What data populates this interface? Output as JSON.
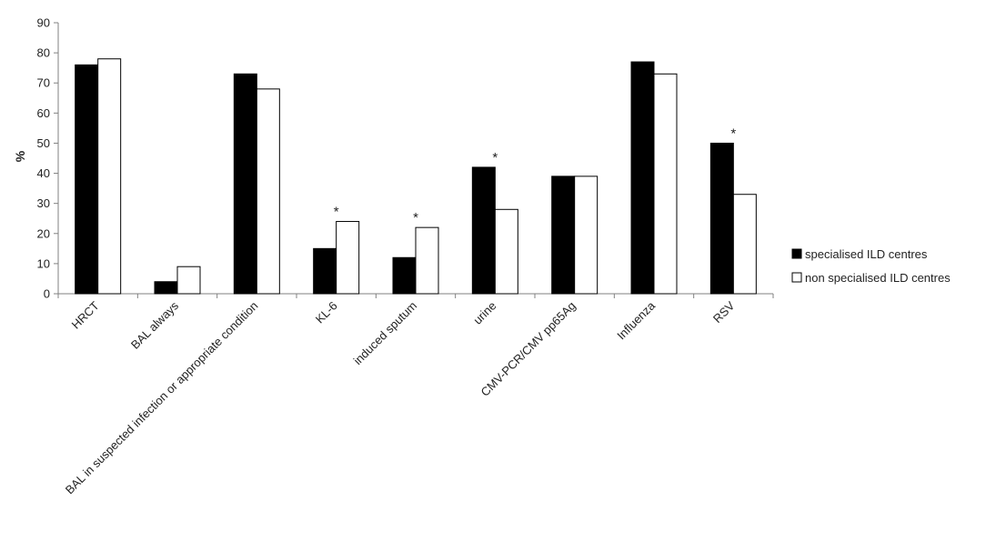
{
  "chart_data": {
    "type": "bar",
    "ylabel": "%",
    "ylim": [
      0,
      90
    ],
    "yticks": [
      0,
      10,
      20,
      30,
      40,
      50,
      60,
      70,
      80,
      90
    ],
    "categories": [
      "HRCT",
      "BAL always",
      "BAL in suspected infection or appropriate condition",
      "KL-6",
      "induced sputum",
      "urine",
      "CMV-PCR/CMV pp65Ag",
      "Influenza",
      "RSV"
    ],
    "series": [
      {
        "name": "specialised ILD centres",
        "values": [
          76,
          4,
          73,
          15,
          12,
          42,
          39,
          77,
          50
        ],
        "color": "#000000"
      },
      {
        "name": "non specialised ILD centres",
        "values": [
          78,
          9,
          68,
          24,
          22,
          28,
          39,
          73,
          33
        ],
        "color": "#ffffff"
      }
    ],
    "annotations": [
      {
        "category": "KL-6",
        "text": "*"
      },
      {
        "category": "induced sputum",
        "text": "*"
      },
      {
        "category": "urine",
        "text": "*"
      },
      {
        "category": "RSV",
        "text": "*"
      }
    ],
    "grid": false,
    "legend_position": "right"
  }
}
